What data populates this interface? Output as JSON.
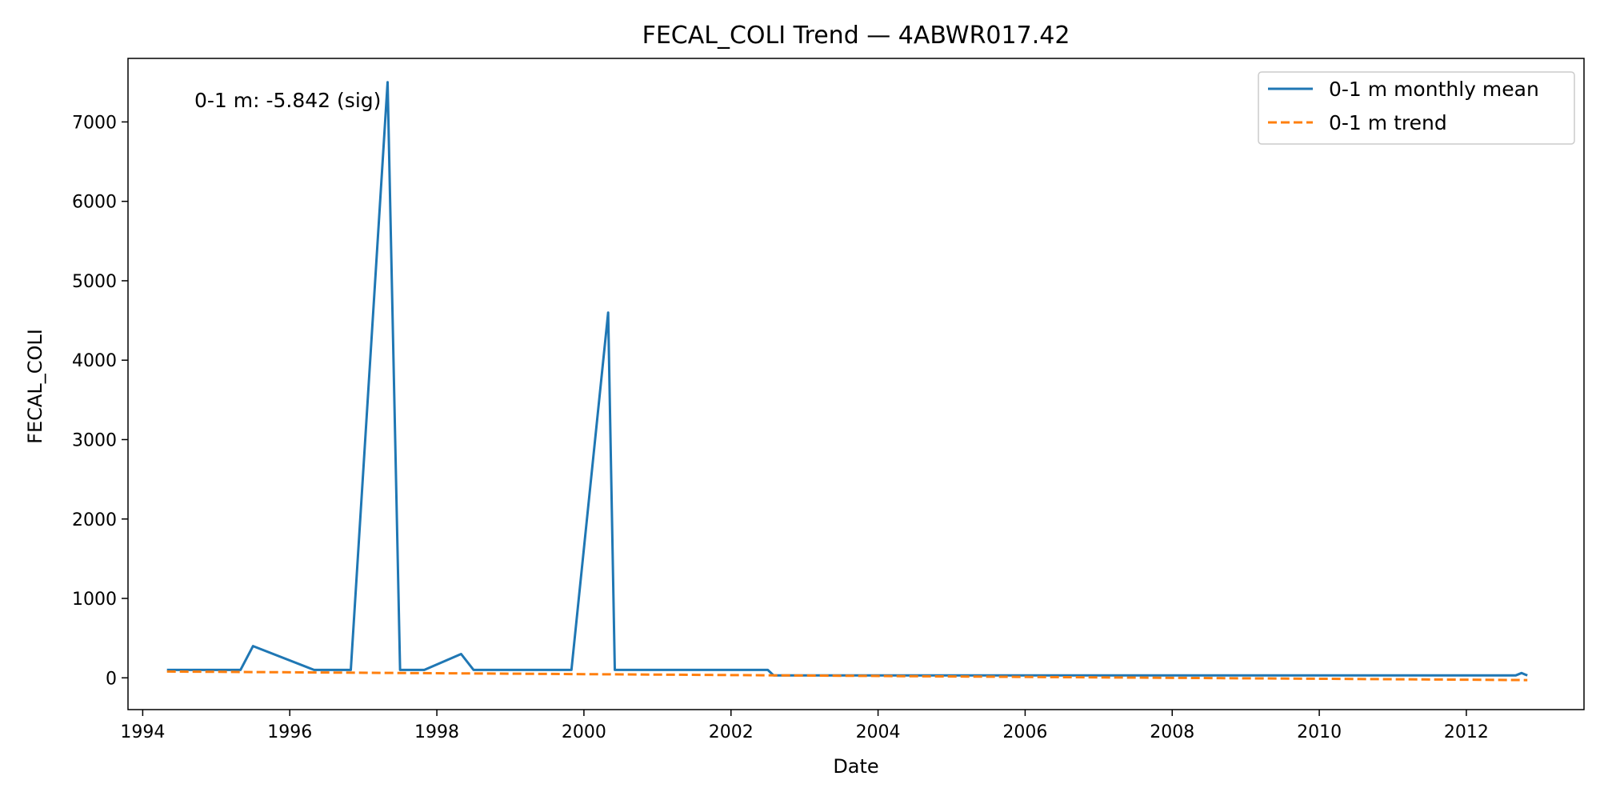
{
  "chart_data": {
    "type": "line",
    "title": "FECAL_COLI Trend — 4ABWR017.42",
    "xlabel": "Date",
    "ylabel": "FECAL_COLI",
    "xlim": [
      1993.8,
      2013.6
    ],
    "ylim": [
      -400,
      7800
    ],
    "x_ticks": [
      1994,
      1996,
      1998,
      2000,
      2002,
      2004,
      2006,
      2008,
      2010,
      2012
    ],
    "y_ticks": [
      0,
      1000,
      2000,
      3000,
      4000,
      5000,
      6000,
      7000
    ],
    "grid": false,
    "legend_position": "top-right",
    "annotation": "0-1 m: -5.842 (sig)",
    "series": [
      {
        "name": "0-1 m monthly mean",
        "color": "#1f77b4",
        "style": "solid",
        "points": [
          [
            1994.33,
            100
          ],
          [
            1995.33,
            100
          ],
          [
            1995.5,
            400
          ],
          [
            1996.33,
            100
          ],
          [
            1996.83,
            100
          ],
          [
            1997.33,
            7500
          ],
          [
            1997.5,
            100
          ],
          [
            1997.83,
            100
          ],
          [
            1998.33,
            300
          ],
          [
            1998.5,
            100
          ],
          [
            1999.83,
            100
          ],
          [
            2000.33,
            4600
          ],
          [
            2000.42,
            100
          ],
          [
            2002.5,
            100
          ],
          [
            2002.58,
            30
          ],
          [
            2012.67,
            30
          ],
          [
            2012.75,
            60
          ],
          [
            2012.83,
            30
          ]
        ]
      },
      {
        "name": "0-1 m trend",
        "color": "#ff7f0e",
        "style": "dashed",
        "points": [
          [
            1994.33,
            80
          ],
          [
            2012.83,
            -28
          ]
        ]
      }
    ]
  }
}
